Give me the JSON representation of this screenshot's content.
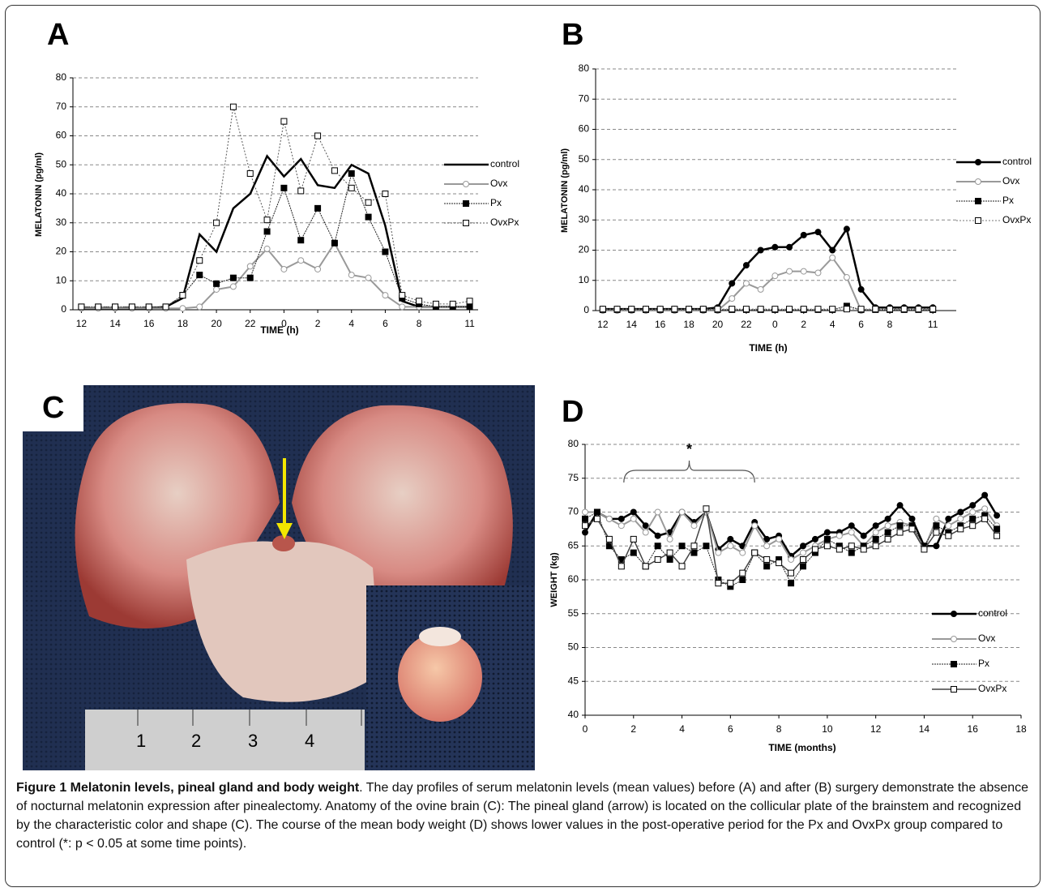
{
  "chart_data": [
    {
      "type": "line",
      "panel": "A",
      "ylabel": "MELATONIN (pg/ml)",
      "xlabel": "TIME (h)",
      "categories": [
        "12",
        null,
        "14",
        null,
        "16",
        null,
        "18",
        null,
        "20",
        null,
        "22",
        null,
        "0",
        null,
        "2",
        null,
        "4",
        null,
        "6",
        null,
        "8",
        null,
        null,
        "11"
      ],
      "ylim": [
        0,
        80
      ],
      "yticks": [
        0,
        10,
        20,
        30,
        40,
        50,
        60,
        70,
        80
      ],
      "grid": true,
      "legend": "right",
      "series": [
        {
          "name": "control",
          "color": "#000000",
          "width": 2.5,
          "dash": "",
          "marker": "none",
          "values": [
            0.5,
            0.5,
            0.5,
            0.5,
            0.5,
            1,
            4,
            26,
            20,
            35,
            40,
            53,
            46,
            52,
            43,
            42,
            50,
            47,
            29,
            3,
            1,
            1,
            1,
            1
          ]
        },
        {
          "name": "Ovx",
          "color": "#999999",
          "width": 2,
          "dash": "",
          "marker": "circle-open",
          "values": [
            0.5,
            0.5,
            0.5,
            0.5,
            0.5,
            0.5,
            0.5,
            1,
            7,
            8,
            15,
            21,
            14,
            17,
            14,
            23,
            12,
            11,
            5,
            1,
            1,
            1,
            1,
            1
          ]
        },
        {
          "name": "Px",
          "color": "#222222",
          "width": 1,
          "dash": "2,1",
          "marker": "square-filled",
          "values": [
            1,
            1,
            1,
            1,
            1,
            1,
            5,
            12,
            9,
            11,
            11,
            27,
            42,
            24,
            35,
            23,
            47,
            32,
            20,
            4,
            2,
            1,
            1,
            1
          ]
        },
        {
          "name": "OvxPx",
          "color": "#555555",
          "width": 1,
          "dash": "2,2",
          "marker": "square-open",
          "values": [
            1,
            1,
            1,
            1,
            1,
            1,
            5,
            17,
            30,
            70,
            47,
            31,
            65,
            41,
            60,
            48,
            42,
            37,
            40,
            5,
            3,
            2,
            2,
            3
          ]
        }
      ]
    },
    {
      "type": "line",
      "panel": "B",
      "ylabel": "MELATONIN (pg/ml)",
      "xlabel": "TIME (h)",
      "categories": [
        "12",
        null,
        "14",
        null,
        "16",
        null,
        "18",
        null,
        "20",
        null,
        "22",
        null,
        "0",
        null,
        "2",
        null,
        "4",
        null,
        "6",
        null,
        "8",
        null,
        null,
        "11"
      ],
      "ylim": [
        0,
        80
      ],
      "yticks": [
        0,
        10,
        20,
        30,
        40,
        50,
        60,
        70,
        80
      ],
      "grid": true,
      "legend": "right",
      "series": [
        {
          "name": "control",
          "color": "#000000",
          "width": 2.5,
          "dash": "",
          "marker": "circle-filled",
          "values": [
            0.5,
            0.5,
            0.5,
            0.5,
            0.5,
            0.5,
            0.5,
            0.5,
            1,
            9,
            15,
            20,
            21,
            21,
            25,
            26,
            20,
            27,
            7,
            1,
            1,
            1,
            1,
            1
          ]
        },
        {
          "name": "Ovx",
          "color": "#999999",
          "width": 2,
          "dash": "",
          "marker": "circle-open",
          "values": [
            0,
            0,
            0,
            0,
            0,
            0,
            0,
            0,
            0,
            4,
            9,
            7,
            11.5,
            13,
            13,
            12.5,
            17.5,
            11,
            0,
            null,
            null,
            null,
            null,
            null
          ]
        },
        {
          "name": "Px",
          "color": "#222222",
          "width": 1,
          "dash": "2,1",
          "marker": "square-filled",
          "values": [
            0.3,
            0.3,
            0.3,
            0.3,
            0.3,
            0.3,
            0.3,
            0.3,
            0.3,
            0.3,
            0.3,
            0.3,
            0.3,
            0.3,
            0.3,
            0.3,
            0.3,
            1.5,
            0.3,
            0.3,
            0.3,
            0.3,
            0.3,
            0.3
          ]
        },
        {
          "name": "OvxPx",
          "color": "#777777",
          "width": 1,
          "dash": "2,2",
          "marker": "square-open",
          "values": [
            0.5,
            0.5,
            0.5,
            0.5,
            0.5,
            0.5,
            0.5,
            0.5,
            0.5,
            0.5,
            0.5,
            0.5,
            0.5,
            0.5,
            0.5,
            0.5,
            0.5,
            0.5,
            0.5,
            0.5,
            0.5,
            0.5,
            0.5,
            0.5
          ]
        }
      ]
    },
    {
      "type": "line",
      "panel": "D",
      "ylabel": "WEIGHT (kg)",
      "xlabel": "TIME (months)",
      "annotation": "*",
      "x": [
        0,
        0.5,
        1,
        1.5,
        2,
        2.5,
        3,
        3.5,
        4,
        4.5,
        5,
        5.5,
        6,
        6.5,
        7,
        7.5,
        8,
        8.5,
        9,
        9.5,
        10,
        10.5,
        11,
        11.5,
        12,
        12.5,
        13,
        13.5,
        14,
        14.5,
        15,
        15.5,
        16,
        16.5,
        17
      ],
      "xlim": [
        0,
        18
      ],
      "xticks": [
        0,
        2,
        4,
        6,
        8,
        10,
        12,
        14,
        16,
        18
      ],
      "ylim": [
        40,
        80
      ],
      "yticks": [
        40,
        45,
        50,
        55,
        60,
        65,
        70,
        75,
        80
      ],
      "grid": true,
      "legend": "lower right",
      "series": [
        {
          "name": "control",
          "color": "#000000",
          "width": 2.5,
          "dash": "",
          "marker": "circle-filled",
          "values": [
            67,
            70,
            69,
            69,
            70,
            68,
            66.5,
            67,
            70,
            68.5,
            70,
            64.5,
            66,
            65,
            68.5,
            66,
            66.5,
            63.5,
            65,
            66,
            67,
            67,
            68,
            66.5,
            68,
            69,
            71,
            69,
            65,
            65,
            69,
            70,
            71,
            72.5,
            69.5
          ]
        },
        {
          "name": "Ovx",
          "color": "#999999",
          "width": 2,
          "dash": "",
          "marker": "circle-open",
          "values": [
            70,
            70,
            69,
            68,
            69,
            67,
            70,
            66,
            70,
            68,
            70,
            64,
            65,
            64,
            68,
            65,
            66,
            63,
            64,
            65,
            66,
            66.5,
            67,
            65,
            67,
            68,
            68.5,
            68,
            64.5,
            69,
            68,
            69,
            70,
            70.5,
            68
          ]
        },
        {
          "name": "Px",
          "color": "#222222",
          "width": 1,
          "dash": "2,1",
          "marker": "square-filled",
          "values": [
            69,
            70,
            65,
            63,
            64,
            62,
            65,
            63,
            65,
            64,
            65,
            60,
            59,
            60,
            64,
            62,
            63,
            59.5,
            62,
            64,
            66,
            65,
            64,
            65,
            66,
            67,
            68,
            68,
            65,
            68,
            67,
            68,
            69,
            69.5,
            67.5
          ]
        },
        {
          "name": "OvxPx",
          "color": "#444444",
          "width": 1.5,
          "dash": "",
          "marker": "square-open",
          "values": [
            68,
            69,
            66,
            62,
            66,
            62,
            63,
            64,
            62,
            65,
            70.5,
            59.5,
            59.5,
            61,
            64,
            63,
            62.5,
            61,
            63,
            64.5,
            65,
            64.5,
            65,
            64.5,
            65,
            66,
            67,
            67.5,
            64.5,
            67,
            66.5,
            67.5,
            68,
            69,
            66.5
          ]
        }
      ]
    }
  ],
  "photo": {
    "label": "C"
  },
  "caption": {
    "title": "Figure 1 Melatonin levels, pineal gland and body weight",
    "text": ". The day profiles of serum melatonin levels (mean values) before (A) and after (B) surgery demonstrate the absence of nocturnal melatonin expression after pinealectomy. Anatomy of the ovine brain (C): The pineal gland (arrow) is located on the collicular plate of the brainstem and recognized by the characteristic color and shape (C). The course of the mean body weight (D) shows lower values in the post-operative period for the Px and OvxPx group compared to control (*: p < 0.05 at some time points)."
  }
}
